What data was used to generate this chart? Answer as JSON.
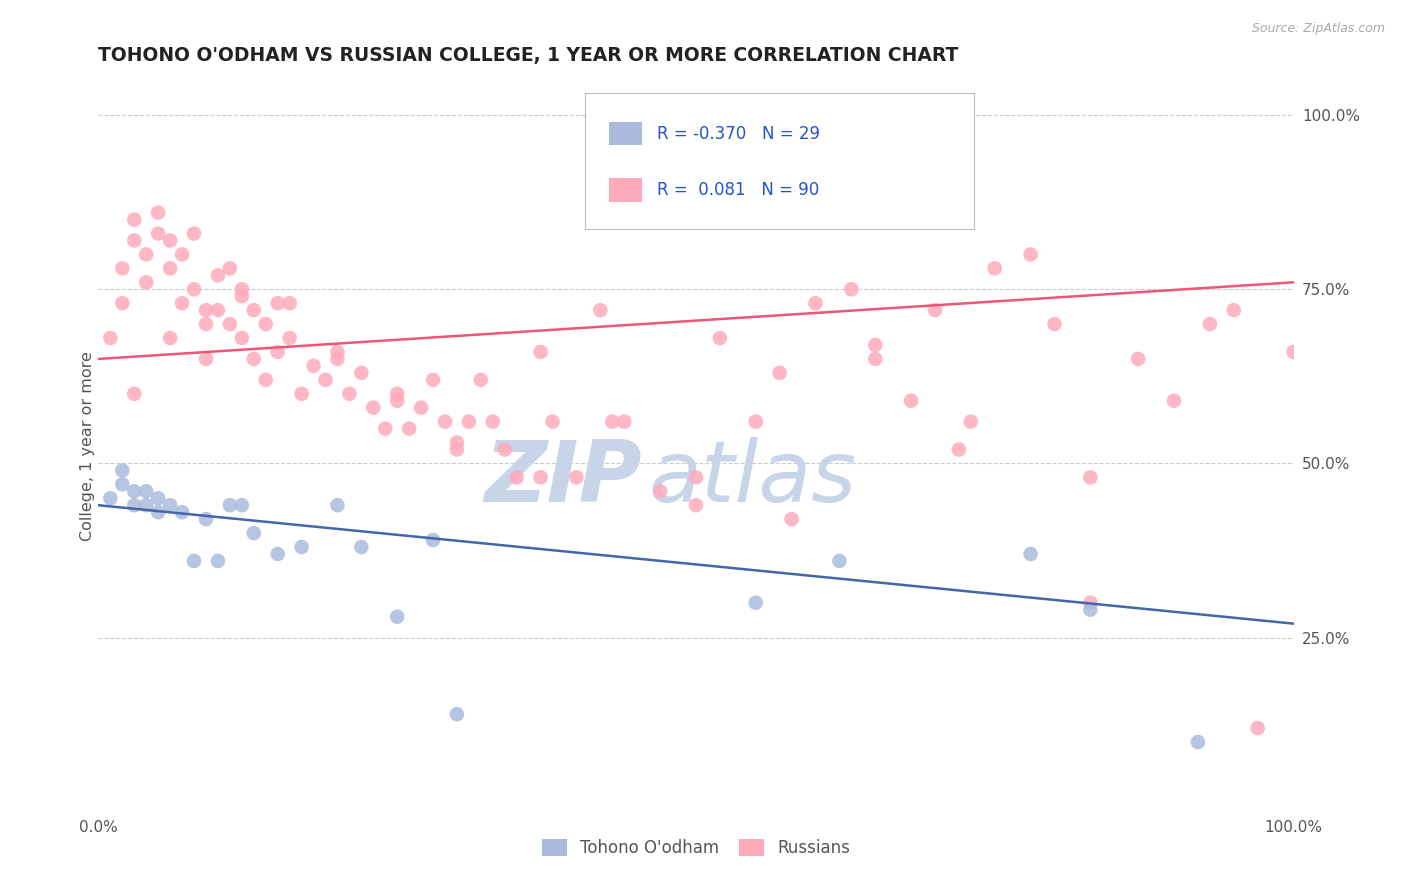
{
  "title": "TOHONO O'ODHAM VS RUSSIAN COLLEGE, 1 YEAR OR MORE CORRELATION CHART",
  "source_text": "Source: ZipAtlas.com",
  "ylabel": "College, 1 year or more",
  "xlim": [
    0.0,
    1.0
  ],
  "ylim": [
    0.0,
    1.05
  ],
  "grid_color": "#cccccc",
  "background_color": "#ffffff",
  "watermark_text1": "ZIP",
  "watermark_text2": "atlas",
  "watermark_color1": "#c8d4e8",
  "watermark_color2": "#c8d4e8",
  "legend_R1": "-0.370",
  "legend_N1": "29",
  "legend_R2": "0.081",
  "legend_N2": "90",
  "blue_color": "#aabbdd",
  "pink_color": "#ffaabb",
  "blue_line_color": "#4466aa",
  "pink_line_color": "#ee5577",
  "legend_label1": "Tohono O'odham",
  "legend_label2": "Russians",
  "title_color": "#222222",
  "title_fontsize": 13.5,
  "axis_label_color": "#555555",
  "tick_color": "#555555",
  "blue_x": [
    0.01,
    0.02,
    0.02,
    0.03,
    0.03,
    0.04,
    0.04,
    0.05,
    0.05,
    0.06,
    0.07,
    0.08,
    0.09,
    0.1,
    0.11,
    0.12,
    0.13,
    0.15,
    0.17,
    0.2,
    0.22,
    0.25,
    0.28,
    0.3,
    0.55,
    0.62,
    0.78,
    0.83,
    0.92
  ],
  "blue_y": [
    0.45,
    0.47,
    0.49,
    0.44,
    0.46,
    0.44,
    0.46,
    0.43,
    0.45,
    0.44,
    0.43,
    0.36,
    0.42,
    0.36,
    0.44,
    0.44,
    0.4,
    0.37,
    0.38,
    0.44,
    0.38,
    0.28,
    0.39,
    0.14,
    0.3,
    0.36,
    0.37,
    0.29,
    0.1
  ],
  "pink_x": [
    0.01,
    0.02,
    0.02,
    0.03,
    0.03,
    0.04,
    0.04,
    0.05,
    0.05,
    0.06,
    0.06,
    0.07,
    0.07,
    0.08,
    0.08,
    0.09,
    0.09,
    0.1,
    0.1,
    0.11,
    0.11,
    0.12,
    0.12,
    0.13,
    0.13,
    0.14,
    0.14,
    0.15,
    0.15,
    0.16,
    0.17,
    0.18,
    0.19,
    0.2,
    0.21,
    0.22,
    0.23,
    0.24,
    0.25,
    0.26,
    0.27,
    0.28,
    0.29,
    0.3,
    0.31,
    0.32,
    0.33,
    0.34,
    0.35,
    0.37,
    0.38,
    0.4,
    0.42,
    0.44,
    0.47,
    0.5,
    0.52,
    0.55,
    0.57,
    0.6,
    0.63,
    0.65,
    0.68,
    0.7,
    0.72,
    0.75,
    0.78,
    0.8,
    0.83,
    0.87,
    0.9,
    0.93,
    0.95,
    0.97,
    1.0,
    0.03,
    0.06,
    0.09,
    0.12,
    0.16,
    0.2,
    0.25,
    0.3,
    0.37,
    0.43,
    0.5,
    0.58,
    0.65,
    0.73,
    0.83
  ],
  "pink_y": [
    0.68,
    0.73,
    0.78,
    0.82,
    0.85,
    0.8,
    0.76,
    0.83,
    0.86,
    0.82,
    0.78,
    0.73,
    0.8,
    0.83,
    0.75,
    0.7,
    0.65,
    0.72,
    0.77,
    0.78,
    0.7,
    0.74,
    0.68,
    0.72,
    0.65,
    0.7,
    0.62,
    0.66,
    0.73,
    0.68,
    0.6,
    0.64,
    0.62,
    0.66,
    0.6,
    0.63,
    0.58,
    0.55,
    0.6,
    0.55,
    0.58,
    0.62,
    0.56,
    0.52,
    0.56,
    0.62,
    0.56,
    0.52,
    0.48,
    0.66,
    0.56,
    0.48,
    0.72,
    0.56,
    0.46,
    0.44,
    0.68,
    0.56,
    0.63,
    0.73,
    0.75,
    0.65,
    0.59,
    0.72,
    0.52,
    0.78,
    0.8,
    0.7,
    0.3,
    0.65,
    0.59,
    0.7,
    0.72,
    0.12,
    0.66,
    0.6,
    0.68,
    0.72,
    0.75,
    0.73,
    0.65,
    0.59,
    0.53,
    0.48,
    0.56,
    0.48,
    0.42,
    0.67,
    0.56,
    0.48
  ],
  "blue_trend_x0": 0.0,
  "blue_trend_y0": 0.44,
  "blue_trend_x1": 1.0,
  "blue_trend_y1": 0.27,
  "pink_trend_x0": 0.0,
  "pink_trend_y0": 0.65,
  "pink_trend_x1": 1.0,
  "pink_trend_y1": 0.76
}
